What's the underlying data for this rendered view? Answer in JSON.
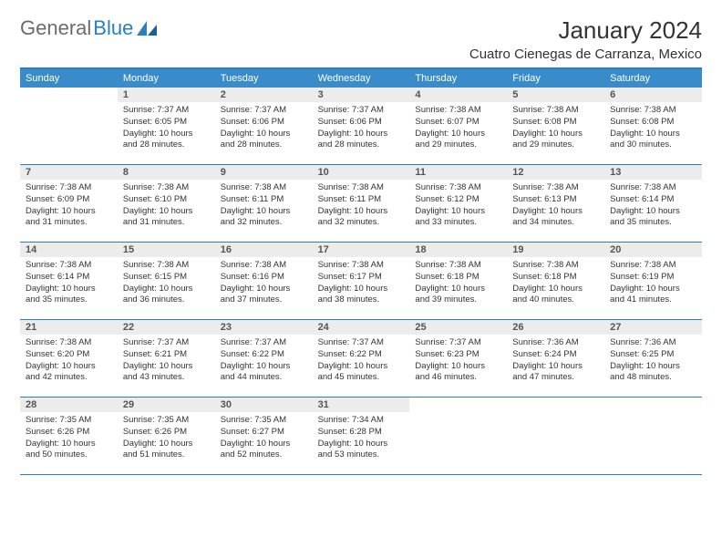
{
  "brand": {
    "part1": "General",
    "part2": "Blue"
  },
  "title": "January 2024",
  "location": "Cuatro Cienegas de Carranza, Mexico",
  "colors": {
    "header_bg": "#3a8bc9",
    "border": "#2a7fbf",
    "daynum_bg": "#ececec",
    "text": "#333333",
    "logo_gray": "#6b6b6b",
    "logo_blue": "#2a7fbf",
    "background": "#ffffff"
  },
  "days_of_week": [
    "Sunday",
    "Monday",
    "Tuesday",
    "Wednesday",
    "Thursday",
    "Friday",
    "Saturday"
  ],
  "weeks": [
    [
      {
        "n": "",
        "sunrise": "",
        "sunset": "",
        "daylight": ""
      },
      {
        "n": "1",
        "sunrise": "Sunrise: 7:37 AM",
        "sunset": "Sunset: 6:05 PM",
        "daylight": "Daylight: 10 hours and 28 minutes."
      },
      {
        "n": "2",
        "sunrise": "Sunrise: 7:37 AM",
        "sunset": "Sunset: 6:06 PM",
        "daylight": "Daylight: 10 hours and 28 minutes."
      },
      {
        "n": "3",
        "sunrise": "Sunrise: 7:37 AM",
        "sunset": "Sunset: 6:06 PM",
        "daylight": "Daylight: 10 hours and 28 minutes."
      },
      {
        "n": "4",
        "sunrise": "Sunrise: 7:38 AM",
        "sunset": "Sunset: 6:07 PM",
        "daylight": "Daylight: 10 hours and 29 minutes."
      },
      {
        "n": "5",
        "sunrise": "Sunrise: 7:38 AM",
        "sunset": "Sunset: 6:08 PM",
        "daylight": "Daylight: 10 hours and 29 minutes."
      },
      {
        "n": "6",
        "sunrise": "Sunrise: 7:38 AM",
        "sunset": "Sunset: 6:08 PM",
        "daylight": "Daylight: 10 hours and 30 minutes."
      }
    ],
    [
      {
        "n": "7",
        "sunrise": "Sunrise: 7:38 AM",
        "sunset": "Sunset: 6:09 PM",
        "daylight": "Daylight: 10 hours and 31 minutes."
      },
      {
        "n": "8",
        "sunrise": "Sunrise: 7:38 AM",
        "sunset": "Sunset: 6:10 PM",
        "daylight": "Daylight: 10 hours and 31 minutes."
      },
      {
        "n": "9",
        "sunrise": "Sunrise: 7:38 AM",
        "sunset": "Sunset: 6:11 PM",
        "daylight": "Daylight: 10 hours and 32 minutes."
      },
      {
        "n": "10",
        "sunrise": "Sunrise: 7:38 AM",
        "sunset": "Sunset: 6:11 PM",
        "daylight": "Daylight: 10 hours and 32 minutes."
      },
      {
        "n": "11",
        "sunrise": "Sunrise: 7:38 AM",
        "sunset": "Sunset: 6:12 PM",
        "daylight": "Daylight: 10 hours and 33 minutes."
      },
      {
        "n": "12",
        "sunrise": "Sunrise: 7:38 AM",
        "sunset": "Sunset: 6:13 PM",
        "daylight": "Daylight: 10 hours and 34 minutes."
      },
      {
        "n": "13",
        "sunrise": "Sunrise: 7:38 AM",
        "sunset": "Sunset: 6:14 PM",
        "daylight": "Daylight: 10 hours and 35 minutes."
      }
    ],
    [
      {
        "n": "14",
        "sunrise": "Sunrise: 7:38 AM",
        "sunset": "Sunset: 6:14 PM",
        "daylight": "Daylight: 10 hours and 35 minutes."
      },
      {
        "n": "15",
        "sunrise": "Sunrise: 7:38 AM",
        "sunset": "Sunset: 6:15 PM",
        "daylight": "Daylight: 10 hours and 36 minutes."
      },
      {
        "n": "16",
        "sunrise": "Sunrise: 7:38 AM",
        "sunset": "Sunset: 6:16 PM",
        "daylight": "Daylight: 10 hours and 37 minutes."
      },
      {
        "n": "17",
        "sunrise": "Sunrise: 7:38 AM",
        "sunset": "Sunset: 6:17 PM",
        "daylight": "Daylight: 10 hours and 38 minutes."
      },
      {
        "n": "18",
        "sunrise": "Sunrise: 7:38 AM",
        "sunset": "Sunset: 6:18 PM",
        "daylight": "Daylight: 10 hours and 39 minutes."
      },
      {
        "n": "19",
        "sunrise": "Sunrise: 7:38 AM",
        "sunset": "Sunset: 6:18 PM",
        "daylight": "Daylight: 10 hours and 40 minutes."
      },
      {
        "n": "20",
        "sunrise": "Sunrise: 7:38 AM",
        "sunset": "Sunset: 6:19 PM",
        "daylight": "Daylight: 10 hours and 41 minutes."
      }
    ],
    [
      {
        "n": "21",
        "sunrise": "Sunrise: 7:38 AM",
        "sunset": "Sunset: 6:20 PM",
        "daylight": "Daylight: 10 hours and 42 minutes."
      },
      {
        "n": "22",
        "sunrise": "Sunrise: 7:37 AM",
        "sunset": "Sunset: 6:21 PM",
        "daylight": "Daylight: 10 hours and 43 minutes."
      },
      {
        "n": "23",
        "sunrise": "Sunrise: 7:37 AM",
        "sunset": "Sunset: 6:22 PM",
        "daylight": "Daylight: 10 hours and 44 minutes."
      },
      {
        "n": "24",
        "sunrise": "Sunrise: 7:37 AM",
        "sunset": "Sunset: 6:22 PM",
        "daylight": "Daylight: 10 hours and 45 minutes."
      },
      {
        "n": "25",
        "sunrise": "Sunrise: 7:37 AM",
        "sunset": "Sunset: 6:23 PM",
        "daylight": "Daylight: 10 hours and 46 minutes."
      },
      {
        "n": "26",
        "sunrise": "Sunrise: 7:36 AM",
        "sunset": "Sunset: 6:24 PM",
        "daylight": "Daylight: 10 hours and 47 minutes."
      },
      {
        "n": "27",
        "sunrise": "Sunrise: 7:36 AM",
        "sunset": "Sunset: 6:25 PM",
        "daylight": "Daylight: 10 hours and 48 minutes."
      }
    ],
    [
      {
        "n": "28",
        "sunrise": "Sunrise: 7:35 AM",
        "sunset": "Sunset: 6:26 PM",
        "daylight": "Daylight: 10 hours and 50 minutes."
      },
      {
        "n": "29",
        "sunrise": "Sunrise: 7:35 AM",
        "sunset": "Sunset: 6:26 PM",
        "daylight": "Daylight: 10 hours and 51 minutes."
      },
      {
        "n": "30",
        "sunrise": "Sunrise: 7:35 AM",
        "sunset": "Sunset: 6:27 PM",
        "daylight": "Daylight: 10 hours and 52 minutes."
      },
      {
        "n": "31",
        "sunrise": "Sunrise: 7:34 AM",
        "sunset": "Sunset: 6:28 PM",
        "daylight": "Daylight: 10 hours and 53 minutes."
      },
      {
        "n": "",
        "sunrise": "",
        "sunset": "",
        "daylight": ""
      },
      {
        "n": "",
        "sunrise": "",
        "sunset": "",
        "daylight": ""
      },
      {
        "n": "",
        "sunrise": "",
        "sunset": "",
        "daylight": ""
      }
    ]
  ]
}
